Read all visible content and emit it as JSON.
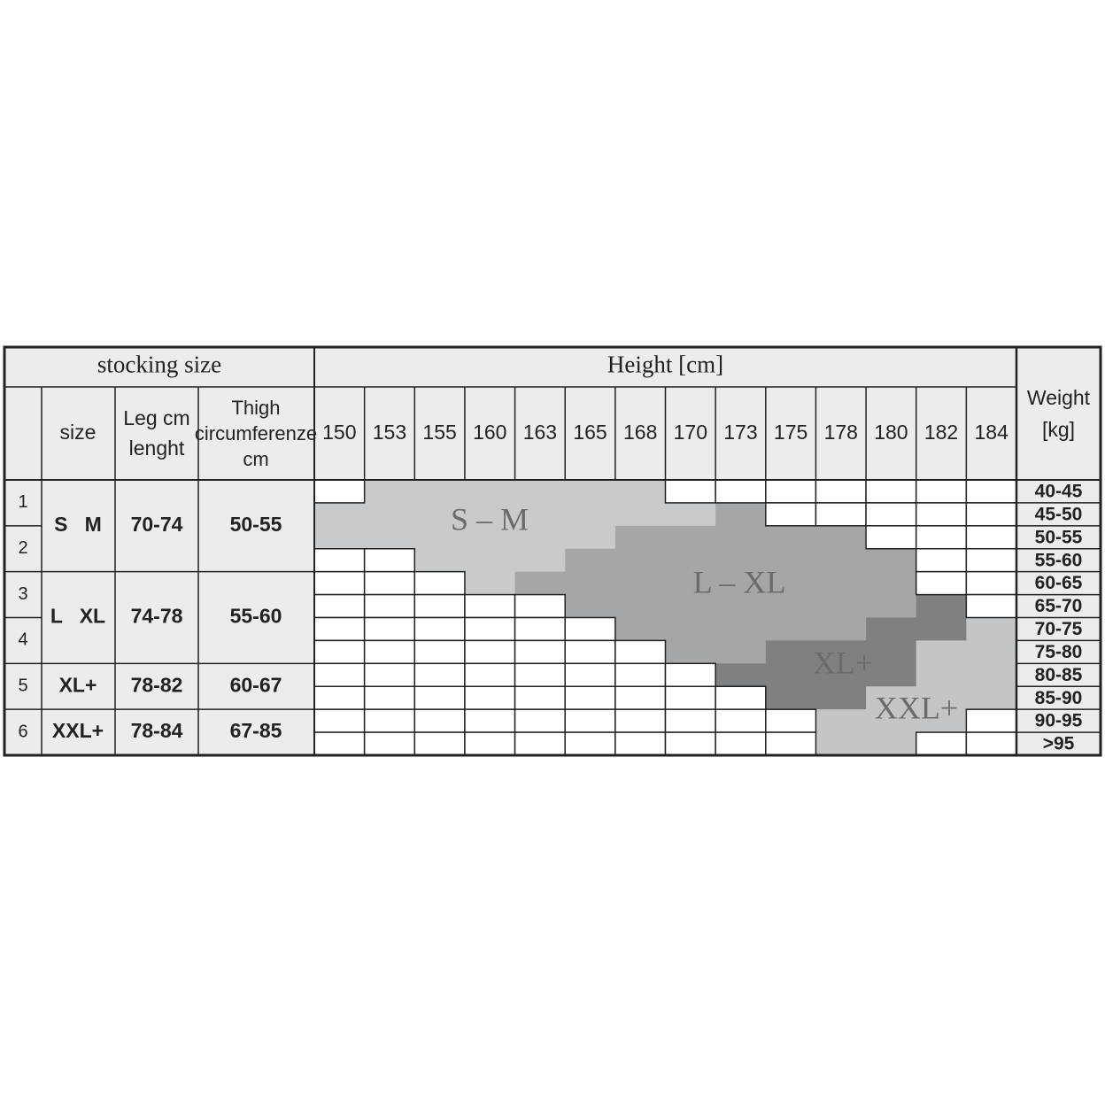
{
  "header": {
    "stocking_size": "stocking size",
    "height": "Height [cm]",
    "weight": [
      "Weight",
      "[kg]"
    ]
  },
  "columns": {
    "size": "size",
    "leg": [
      "Leg cm",
      "lenght"
    ],
    "thigh": [
      "Thigh",
      "circumferenze",
      "cm"
    ]
  },
  "heights": [
    150,
    153,
    155,
    160,
    163,
    165,
    168,
    170,
    173,
    175,
    178,
    180,
    182,
    184
  ],
  "weights": [
    "40-45",
    "45-50",
    "50-55",
    "55-60",
    "60-65",
    "65-70",
    "70-75",
    "75-80",
    "80-85",
    "85-90",
    "90-95",
    ">95"
  ],
  "index": [
    "1",
    "2",
    "3",
    "4",
    "5",
    "6"
  ],
  "sizes": [
    {
      "size": "S   M",
      "leg": "70-74",
      "thigh": "50-55"
    },
    {
      "size": "L   XL",
      "leg": "74-78",
      "thigh": "55-60"
    },
    {
      "size": "XL+",
      "leg": "78-82",
      "thigh": "60-67"
    },
    {
      "size": "XXL+",
      "leg": "78-84",
      "thigh": "67-85"
    }
  ],
  "zones": [
    "S – M",
    "L – XL",
    "XL+",
    "XXL+"
  ]
}
